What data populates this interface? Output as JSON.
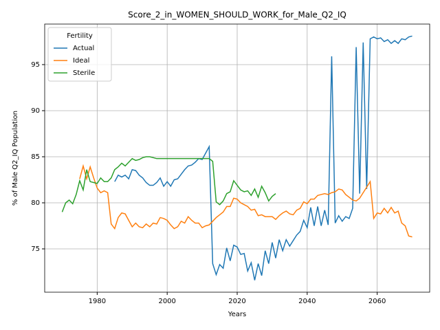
{
  "chart_data": {
    "type": "line",
    "title": "Score_2_in_WOMEN_SHOULD_WORK_for_Male_Q2_IQ",
    "xlabel": "Years",
    "ylabel": "% of Male Q2_IQ Population",
    "legend_title": "Fertility",
    "legend": "upper left",
    "grid": true,
    "xlim": [
      1965,
      2075
    ],
    "ylim": [
      70.3,
      99.4
    ],
    "xticks": [
      1980,
      2000,
      2020,
      2040,
      2060
    ],
    "yticks": [
      75,
      80,
      85,
      90,
      95
    ],
    "x": [
      1970,
      1971,
      1972,
      1973,
      1974,
      1975,
      1976,
      1977,
      1978,
      1979,
      1980,
      1981,
      1982,
      1983,
      1984,
      1985,
      1986,
      1987,
      1988,
      1989,
      1990,
      1991,
      1992,
      1993,
      1994,
      1995,
      1996,
      1997,
      1998,
      1999,
      2000,
      2001,
      2002,
      2003,
      2004,
      2005,
      2006,
      2007,
      2008,
      2009,
      2010,
      2011,
      2012,
      2013,
      2014,
      2015,
      2016,
      2017,
      2018,
      2019,
      2020,
      2021,
      2022,
      2023,
      2024,
      2025,
      2026,
      2027,
      2028,
      2029,
      2030,
      2031,
      2032,
      2033,
      2034,
      2035,
      2036,
      2037,
      2038,
      2039,
      2040,
      2041,
      2042,
      2043,
      2044,
      2045,
      2046,
      2047,
      2048,
      2049,
      2050,
      2051,
      2052,
      2053,
      2054,
      2055,
      2056,
      2057,
      2058,
      2059,
      2060,
      2061,
      2062,
      2063,
      2064,
      2065,
      2066,
      2067,
      2068,
      2069,
      2070
    ],
    "series": [
      {
        "name": "Actual",
        "color": "#1f77b4",
        "values": [
          null,
          null,
          null,
          null,
          null,
          null,
          null,
          null,
          null,
          null,
          null,
          null,
          null,
          null,
          null,
          82.3,
          83.0,
          82.8,
          83.0,
          82.6,
          83.6,
          83.5,
          83.0,
          82.7,
          82.2,
          81.9,
          81.9,
          82.2,
          82.7,
          81.8,
          82.3,
          81.8,
          82.5,
          82.6,
          83.1,
          83.6,
          84.0,
          84.1,
          84.4,
          84.8,
          84.7,
          85.4,
          86.1,
          73.4,
          72.2,
          73.3,
          72.9,
          75.1,
          73.7,
          75.4,
          75.2,
          74.4,
          74.5,
          72.6,
          73.5,
          71.6,
          73.4,
          72.1,
          74.8,
          73.4,
          75.7,
          74.0,
          76.0,
          74.8,
          76.0,
          75.3,
          75.9,
          76.5,
          76.9,
          78.1,
          77.3,
          79.5,
          77.5,
          79.6,
          77.5,
          79.2,
          77.6,
          95.9,
          77.8,
          78.6,
          78.0,
          78.5,
          78.3,
          79.4,
          96.9,
          81.0,
          97.4,
          81.5,
          97.8,
          98.0,
          97.8,
          97.9,
          97.5,
          97.7,
          97.3,
          97.6,
          97.3,
          97.8,
          97.7,
          98.0,
          98.1
        ]
      },
      {
        "name": "Ideal",
        "color": "#ff7f0e",
        "values": [
          null,
          null,
          null,
          null,
          null,
          82.6,
          84.0,
          82.6,
          83.9,
          82.7,
          81.6,
          81.1,
          81.3,
          81.1,
          77.7,
          77.2,
          78.4,
          78.9,
          78.8,
          78.1,
          77.4,
          77.8,
          77.4,
          77.3,
          77.7,
          77.4,
          77.8,
          77.7,
          78.4,
          78.3,
          78.1,
          77.6,
          77.2,
          77.4,
          78.0,
          77.8,
          78.5,
          78.1,
          77.8,
          77.8,
          77.3,
          77.5,
          77.6,
          78.0,
          78.4,
          78.7,
          79.0,
          79.6,
          79.6,
          80.5,
          80.4,
          80.0,
          79.8,
          79.6,
          79.2,
          79.3,
          78.6,
          78.7,
          78.5,
          78.5,
          78.5,
          78.2,
          78.6,
          78.9,
          79.1,
          78.8,
          78.7,
          79.2,
          79.4,
          80.1,
          79.9,
          80.4,
          80.4,
          80.8,
          80.9,
          81.0,
          80.9,
          81.1,
          81.2,
          81.5,
          81.4,
          80.9,
          80.6,
          80.3,
          80.2,
          80.5,
          81.1,
          81.7,
          82.3,
          78.3,
          78.9,
          78.8,
          79.4,
          78.9,
          79.5,
          78.9,
          79.1,
          77.8,
          77.5,
          76.4,
          76.3
        ]
      },
      {
        "name": "Sterile",
        "color": "#2ca02c",
        "values": [
          79.0,
          80.0,
          80.3,
          79.9,
          80.9,
          82.4,
          81.4,
          83.6,
          82.3,
          82.2,
          82.1,
          82.7,
          82.3,
          82.3,
          82.7,
          83.6,
          83.9,
          84.3,
          84.0,
          84.4,
          84.8,
          84.6,
          84.7,
          84.9,
          85.0,
          85.0,
          84.9,
          84.8,
          84.8,
          84.8,
          84.8,
          84.8,
          84.8,
          84.8,
          84.8,
          84.8,
          84.8,
          84.8,
          84.8,
          84.8,
          84.8,
          84.8,
          84.8,
          84.5,
          80.1,
          79.8,
          80.2,
          81.0,
          81.2,
          82.4,
          81.9,
          81.4,
          81.2,
          81.3,
          80.8,
          81.5,
          80.6,
          81.8,
          81.1,
          80.2,
          80.7,
          81.0,
          null,
          null,
          null,
          null,
          null,
          null,
          null,
          null,
          null,
          null,
          null,
          null,
          null,
          null,
          null,
          null,
          null,
          null,
          null,
          null,
          null,
          null,
          null,
          null,
          null,
          null,
          null,
          null,
          null,
          null,
          null,
          null,
          null,
          null,
          null,
          null,
          null,
          null,
          null
        ]
      }
    ]
  }
}
